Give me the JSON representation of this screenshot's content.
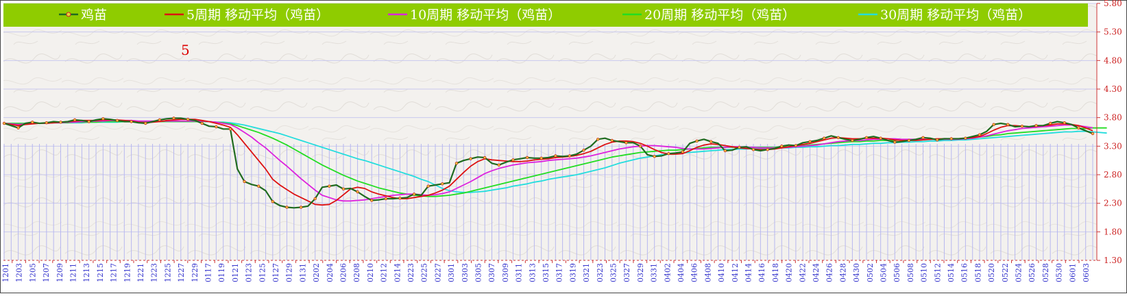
{
  "chart_data": {
    "type": "line",
    "title": "",
    "annotation": "5",
    "xlabel": "",
    "ylabel": "",
    "ylim": [
      1.3,
      5.8
    ],
    "yticks": [
      1.3,
      1.8,
      2.3,
      2.8,
      3.3,
      3.8,
      4.3,
      4.8,
      5.3,
      5.8
    ],
    "ytick_labels": [
      "1.30",
      "1.80",
      "2.30",
      "2.80",
      "3.30",
      "3.80",
      "4.30",
      "4.80",
      "5.30",
      "5.80"
    ],
    "y_axis_position": "right",
    "grid": true,
    "legend_position": "top",
    "legend_background": "#8fcc00",
    "x_tick_labels": [
      "1201",
      "1203",
      "1205",
      "1207",
      "1209",
      "1211",
      "1213",
      "1215",
      "1217",
      "1219",
      "1221",
      "1223",
      "1225",
      "1227",
      "1229",
      "0117",
      "0119",
      "0121",
      "0123",
      "0125",
      "0127",
      "0129",
      "0131",
      "0202",
      "0204",
      "0206",
      "0208",
      "0210",
      "0212",
      "0214",
      "0223",
      "0225",
      "0227",
      "0301",
      "0303",
      "0305",
      "0307",
      "0309",
      "0311",
      "0313",
      "0315",
      "0317",
      "0319",
      "0321",
      "0323",
      "0325",
      "0327",
      "0329",
      "0331",
      "0402",
      "0404",
      "0406",
      "0408",
      "0410",
      "0412",
      "0414",
      "0416",
      "0418",
      "0420",
      "0422",
      "0424",
      "0426",
      "0428",
      "0430",
      "0502",
      "0504",
      "0506",
      "0508",
      "0510",
      "0512",
      "0514",
      "0516",
      "0518",
      "0520",
      "0522",
      "0524",
      "0526",
      "0528",
      "0530",
      "0601",
      "0603"
    ],
    "series": [
      {
        "name": "鸡苗",
        "color": "#1f6b1f",
        "marker": "dot",
        "values": [
          3.7,
          3.66,
          3.62,
          3.7,
          3.72,
          3.7,
          3.71,
          3.73,
          3.72,
          3.73,
          3.76,
          3.75,
          3.73,
          3.76,
          3.78,
          3.77,
          3.75,
          3.73,
          3.73,
          3.71,
          3.7,
          3.73,
          3.76,
          3.78,
          3.79,
          3.79,
          3.77,
          3.75,
          3.7,
          3.65,
          3.64,
          3.6,
          3.6,
          2.9,
          2.68,
          2.63,
          2.6,
          2.52,
          2.33,
          2.26,
          2.23,
          2.22,
          2.23,
          2.25,
          2.38,
          2.58,
          2.6,
          2.62,
          2.55,
          2.56,
          2.5,
          2.42,
          2.35,
          2.36,
          2.38,
          2.38,
          2.39,
          2.4,
          2.46,
          2.44,
          2.6,
          2.62,
          2.64,
          2.66,
          3.0,
          3.05,
          3.08,
          3.11,
          3.1,
          3.0,
          2.97,
          3.02,
          3.06,
          3.08,
          3.1,
          3.09,
          3.09,
          3.1,
          3.13,
          3.12,
          3.13,
          3.16,
          3.23,
          3.3,
          3.42,
          3.44,
          3.4,
          3.38,
          3.36,
          3.36,
          3.3,
          3.15,
          3.12,
          3.13,
          3.17,
          3.18,
          3.2,
          3.35,
          3.39,
          3.42,
          3.38,
          3.35,
          3.22,
          3.23,
          3.28,
          3.29,
          3.24,
          3.22,
          3.24,
          3.26,
          3.3,
          3.32,
          3.31,
          3.36,
          3.38,
          3.4,
          3.44,
          3.48,
          3.45,
          3.42,
          3.4,
          3.42,
          3.45,
          3.47,
          3.44,
          3.4,
          3.37,
          3.38,
          3.4,
          3.42,
          3.45,
          3.44,
          3.41,
          3.43,
          3.43,
          3.43,
          3.44,
          3.47,
          3.5,
          3.56,
          3.68,
          3.7,
          3.68,
          3.64,
          3.65,
          3.64,
          3.66,
          3.66,
          3.7,
          3.73,
          3.71,
          3.68,
          3.62,
          3.57,
          3.52
        ]
      },
      {
        "name": "5周期 移动平均（鸡苗）",
        "color": "#dd1111",
        "values": [
          3.7,
          3.68,
          3.66,
          3.68,
          3.69,
          3.7,
          3.7,
          3.71,
          3.72,
          3.73,
          3.74,
          3.75,
          3.75,
          3.75,
          3.76,
          3.76,
          3.76,
          3.75,
          3.74,
          3.72,
          3.71,
          3.72,
          3.73,
          3.75,
          3.76,
          3.77,
          3.77,
          3.77,
          3.75,
          3.73,
          3.7,
          3.67,
          3.63,
          3.5,
          3.35,
          3.2,
          3.05,
          2.9,
          2.72,
          2.62,
          2.54,
          2.46,
          2.4,
          2.34,
          2.28,
          2.27,
          2.28,
          2.35,
          2.45,
          2.55,
          2.58,
          2.56,
          2.5,
          2.46,
          2.43,
          2.4,
          2.38,
          2.38,
          2.4,
          2.42,
          2.44,
          2.48,
          2.53,
          2.6,
          2.72,
          2.84,
          2.95,
          3.03,
          3.08,
          3.06,
          3.05,
          3.04,
          3.03,
          3.03,
          3.04,
          3.06,
          3.07,
          3.08,
          3.1,
          3.11,
          3.12,
          3.14,
          3.17,
          3.21,
          3.27,
          3.33,
          3.37,
          3.39,
          3.39,
          3.38,
          3.35,
          3.3,
          3.24,
          3.19,
          3.16,
          3.16,
          3.17,
          3.22,
          3.28,
          3.32,
          3.34,
          3.33,
          3.31,
          3.29,
          3.27,
          3.26,
          3.25,
          3.24,
          3.24,
          3.25,
          3.27,
          3.29,
          3.31,
          3.33,
          3.35,
          3.38,
          3.41,
          3.44,
          3.45,
          3.44,
          3.43,
          3.43,
          3.44,
          3.44,
          3.44,
          3.43,
          3.41,
          3.4,
          3.4,
          3.4,
          3.41,
          3.42,
          3.43,
          3.43,
          3.43,
          3.43,
          3.44,
          3.45,
          3.47,
          3.52,
          3.58,
          3.63,
          3.66,
          3.66,
          3.65,
          3.64,
          3.65,
          3.66,
          3.67,
          3.69,
          3.69,
          3.68,
          3.66,
          3.62,
          3.57
        ]
      },
      {
        "name": "10周期 移动平均（鸡苗）",
        "color": "#dd22dd",
        "values": [
          3.7,
          3.69,
          3.68,
          3.69,
          3.7,
          3.7,
          3.7,
          3.71,
          3.71,
          3.72,
          3.72,
          3.73,
          3.73,
          3.74,
          3.74,
          3.75,
          3.75,
          3.75,
          3.75,
          3.74,
          3.74,
          3.74,
          3.74,
          3.74,
          3.74,
          3.74,
          3.74,
          3.74,
          3.74,
          3.73,
          3.72,
          3.7,
          3.68,
          3.62,
          3.54,
          3.46,
          3.36,
          3.27,
          3.16,
          3.05,
          2.95,
          2.84,
          2.73,
          2.63,
          2.53,
          2.44,
          2.4,
          2.36,
          2.34,
          2.34,
          2.35,
          2.36,
          2.38,
          2.4,
          2.42,
          2.44,
          2.45,
          2.46,
          2.46,
          2.45,
          2.44,
          2.45,
          2.47,
          2.5,
          2.56,
          2.62,
          2.68,
          2.75,
          2.82,
          2.87,
          2.91,
          2.94,
          2.97,
          2.99,
          3.01,
          3.02,
          3.03,
          3.05,
          3.06,
          3.07,
          3.08,
          3.09,
          3.11,
          3.13,
          3.16,
          3.19,
          3.22,
          3.25,
          3.27,
          3.29,
          3.3,
          3.31,
          3.31,
          3.3,
          3.29,
          3.28,
          3.26,
          3.25,
          3.25,
          3.25,
          3.26,
          3.27,
          3.28,
          3.29,
          3.29,
          3.28,
          3.28,
          3.27,
          3.27,
          3.27,
          3.27,
          3.28,
          3.29,
          3.3,
          3.31,
          3.32,
          3.34,
          3.36,
          3.38,
          3.39,
          3.4,
          3.4,
          3.41,
          3.42,
          3.42,
          3.43,
          3.43,
          3.42,
          3.42,
          3.42,
          3.42,
          3.42,
          3.42,
          3.42,
          3.42,
          3.42,
          3.43,
          3.44,
          3.46,
          3.48,
          3.51,
          3.54,
          3.57,
          3.59,
          3.61,
          3.62,
          3.63,
          3.64,
          3.65,
          3.66,
          3.67,
          3.67,
          3.66,
          3.64,
          3.62
        ]
      },
      {
        "name": "20周期 移动平均（鸡苗）",
        "color": "#22dd22",
        "values": [
          3.7,
          3.7,
          3.7,
          3.7,
          3.7,
          3.7,
          3.71,
          3.71,
          3.71,
          3.71,
          3.72,
          3.72,
          3.72,
          3.72,
          3.73,
          3.73,
          3.73,
          3.73,
          3.73,
          3.73,
          3.73,
          3.73,
          3.73,
          3.73,
          3.73,
          3.73,
          3.73,
          3.73,
          3.73,
          3.73,
          3.72,
          3.71,
          3.69,
          3.66,
          3.62,
          3.58,
          3.54,
          3.49,
          3.44,
          3.38,
          3.32,
          3.25,
          3.18,
          3.11,
          3.04,
          2.97,
          2.91,
          2.85,
          2.79,
          2.74,
          2.69,
          2.65,
          2.61,
          2.57,
          2.54,
          2.51,
          2.48,
          2.46,
          2.44,
          2.43,
          2.42,
          2.42,
          2.43,
          2.44,
          2.46,
          2.48,
          2.51,
          2.54,
          2.57,
          2.6,
          2.63,
          2.66,
          2.69,
          2.72,
          2.75,
          2.78,
          2.81,
          2.84,
          2.87,
          2.9,
          2.93,
          2.96,
          2.99,
          3.02,
          3.05,
          3.08,
          3.11,
          3.13,
          3.15,
          3.17,
          3.19,
          3.2,
          3.21,
          3.22,
          3.23,
          3.23,
          3.24,
          3.25,
          3.26,
          3.27,
          3.28,
          3.28,
          3.28,
          3.28,
          3.28,
          3.28,
          3.28,
          3.28,
          3.28,
          3.28,
          3.29,
          3.29,
          3.3,
          3.31,
          3.32,
          3.33,
          3.34,
          3.35,
          3.36,
          3.37,
          3.38,
          3.38,
          3.39,
          3.39,
          3.4,
          3.4,
          3.4,
          3.41,
          3.41,
          3.41,
          3.42,
          3.42,
          3.42,
          3.42,
          3.43,
          3.43,
          3.44,
          3.45,
          3.46,
          3.47,
          3.49,
          3.5,
          3.52,
          3.53,
          3.54,
          3.55,
          3.56,
          3.57,
          3.58,
          3.59,
          3.6,
          3.61,
          3.61,
          3.61,
          3.62,
          3.62,
          3.62
        ]
      },
      {
        "name": "30周期 移动平均（鸡苗）",
        "color": "#22dddd",
        "values": [
          3.7,
          3.7,
          3.7,
          3.7,
          3.7,
          3.7,
          3.7,
          3.71,
          3.71,
          3.71,
          3.71,
          3.71,
          3.72,
          3.72,
          3.72,
          3.72,
          3.72,
          3.73,
          3.73,
          3.73,
          3.73,
          3.73,
          3.73,
          3.73,
          3.73,
          3.73,
          3.73,
          3.73,
          3.73,
          3.73,
          3.72,
          3.72,
          3.71,
          3.69,
          3.67,
          3.64,
          3.61,
          3.58,
          3.55,
          3.52,
          3.48,
          3.44,
          3.4,
          3.36,
          3.32,
          3.28,
          3.24,
          3.2,
          3.16,
          3.12,
          3.08,
          3.05,
          3.01,
          2.97,
          2.93,
          2.89,
          2.85,
          2.81,
          2.77,
          2.72,
          2.68,
          2.62,
          2.56,
          2.52,
          2.5,
          2.49,
          2.49,
          2.5,
          2.51,
          2.53,
          2.55,
          2.57,
          2.6,
          2.62,
          2.64,
          2.67,
          2.69,
          2.72,
          2.74,
          2.76,
          2.78,
          2.8,
          2.83,
          2.86,
          2.89,
          2.92,
          2.96,
          3.0,
          3.03,
          3.06,
          3.09,
          3.11,
          3.13,
          3.15,
          3.16,
          3.17,
          3.18,
          3.19,
          3.2,
          3.21,
          3.22,
          3.23,
          3.24,
          3.24,
          3.25,
          3.25,
          3.26,
          3.26,
          3.26,
          3.27,
          3.27,
          3.27,
          3.28,
          3.28,
          3.29,
          3.29,
          3.3,
          3.31,
          3.31,
          3.32,
          3.33,
          3.33,
          3.34,
          3.35,
          3.35,
          3.36,
          3.36,
          3.37,
          3.37,
          3.38,
          3.38,
          3.39,
          3.39,
          3.4,
          3.4,
          3.41,
          3.41,
          3.42,
          3.43,
          3.44,
          3.45,
          3.46,
          3.47,
          3.48,
          3.49,
          3.5,
          3.51,
          3.52,
          3.53,
          3.54,
          3.55,
          3.55,
          3.56,
          3.56,
          3.55,
          3.54,
          3.53
        ]
      }
    ]
  }
}
